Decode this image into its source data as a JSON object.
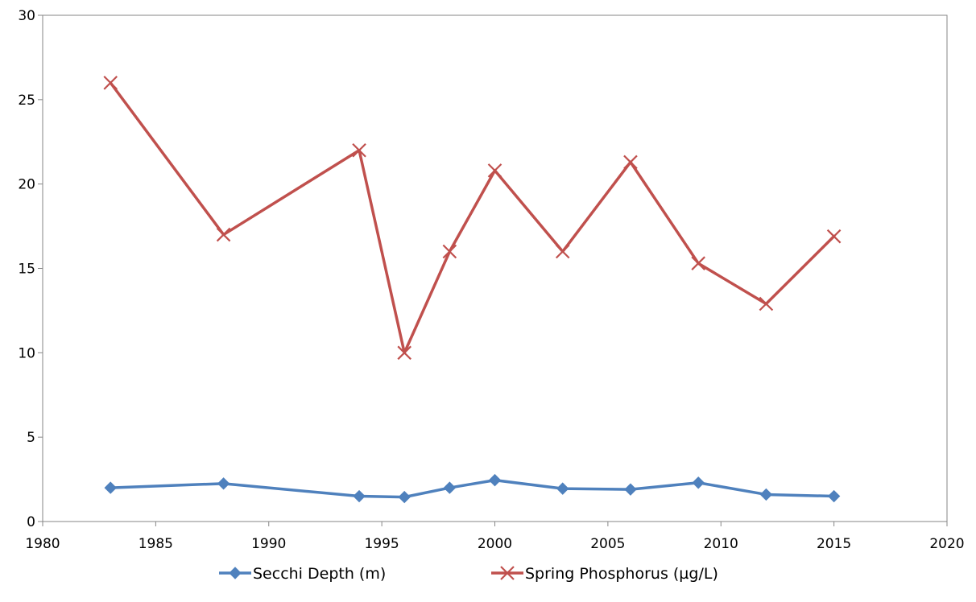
{
  "chart_data": {
    "type": "line",
    "title": "",
    "xlabel": "",
    "ylabel": "",
    "xlim": [
      1980,
      2020
    ],
    "ylim": [
      0,
      30
    ],
    "x_ticks": [
      1980,
      1985,
      1990,
      1995,
      2000,
      2005,
      2010,
      2015,
      2020
    ],
    "y_ticks": [
      0,
      5,
      10,
      15,
      20,
      25,
      30
    ],
    "grid": false,
    "legend_position": "bottom",
    "series": [
      {
        "name": "Secchi Depth (m)",
        "color": "#4F81BD",
        "marker": "diamond",
        "x": [
          1983,
          1988,
          1994,
          1996,
          1998,
          2000,
          2003,
          2006,
          2009,
          2012,
          2015
        ],
        "y": [
          2.0,
          2.25,
          1.5,
          1.45,
          2.0,
          2.45,
          1.95,
          1.9,
          2.3,
          1.6,
          1.5
        ]
      },
      {
        "name": "Spring Phosphorus (µg/L)",
        "color": "#C0504D",
        "marker": "x",
        "x": [
          1983,
          1988,
          1994,
          1996,
          1998,
          2000,
          2003,
          2006,
          2009,
          2012,
          2015
        ],
        "y": [
          26,
          17,
          22,
          10,
          16,
          20.8,
          16,
          21.3,
          15.3,
          12.9,
          16.9
        ]
      }
    ]
  }
}
